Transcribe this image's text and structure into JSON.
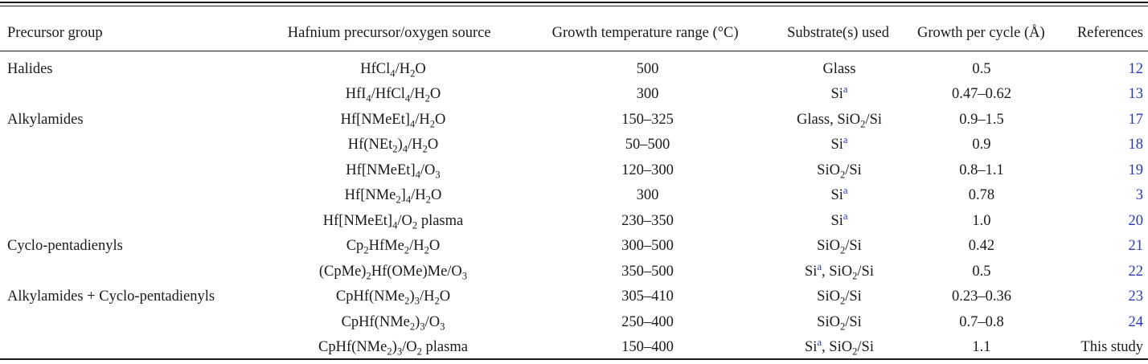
{
  "table": {
    "headers": [
      "Precursor group",
      "Hafnium precursor/oxygen source",
      "Growth temperature range (°C)",
      "Substrate(s) used",
      "Growth per cycle (Å)",
      "References"
    ],
    "rows": [
      {
        "group": "Halides",
        "precursor": [
          "HfCl",
          {
            "sub": "4"
          },
          "/H",
          {
            "sub": "2"
          },
          "O"
        ],
        "temp": "500",
        "substrate": [
          "Glass"
        ],
        "gpc": "0.5",
        "ref": "12"
      },
      {
        "group": "",
        "precursor": [
          "HfI",
          {
            "sub": "4"
          },
          "/HfCl",
          {
            "sub": "4"
          },
          "/H",
          {
            "sub": "2"
          },
          "O"
        ],
        "temp": "300",
        "substrate": [
          "Si",
          {
            "sup": "a"
          }
        ],
        "gpc": "0.47–0.62",
        "ref": "13"
      },
      {
        "group": "Alkylamides",
        "precursor": [
          "Hf[NMeEt]",
          {
            "sub": "4"
          },
          "/H",
          {
            "sub": "2"
          },
          "O"
        ],
        "temp": "150–325",
        "substrate": [
          "Glass, SiO",
          {
            "sub": "2"
          },
          "/Si"
        ],
        "gpc": "0.9–1.5",
        "ref": "17"
      },
      {
        "group": "",
        "precursor": [
          "Hf(NEt",
          {
            "sub": "2"
          },
          ")",
          {
            "sub": "4"
          },
          "/H",
          {
            "sub": "2"
          },
          "O"
        ],
        "temp": "50–500",
        "substrate": [
          "Si",
          {
            "sup": "a"
          }
        ],
        "gpc": "0.9",
        "ref": "18"
      },
      {
        "group": "",
        "precursor": [
          "Hf[NMeEt]",
          {
            "sub": "4"
          },
          "/O",
          {
            "sub": "3"
          }
        ],
        "temp": "120–300",
        "substrate": [
          "SiO",
          {
            "sub": "2"
          },
          "/Si"
        ],
        "gpc": "0.8–1.1",
        "ref": "19"
      },
      {
        "group": "",
        "precursor": [
          "Hf[NMe",
          {
            "sub": "2"
          },
          "]",
          {
            "sub": "4"
          },
          "/H",
          {
            "sub": "2"
          },
          "O"
        ],
        "temp": "300",
        "substrate": [
          "Si",
          {
            "sup": "a"
          }
        ],
        "gpc": "0.78",
        "ref": "3"
      },
      {
        "group": "",
        "precursor": [
          "Hf[NMeEt]",
          {
            "sub": "4"
          },
          "/O",
          {
            "sub": "2"
          },
          " plasma"
        ],
        "temp": "230–350",
        "substrate": [
          "Si",
          {
            "sup": "a"
          }
        ],
        "gpc": "1.0",
        "ref": "20"
      },
      {
        "group": "Cyclo-pentadienyls",
        "precursor": [
          "Cp",
          {
            "sub": "2"
          },
          "HfMe",
          {
            "sub": "2"
          },
          "/H",
          {
            "sub": "2"
          },
          "O"
        ],
        "temp": "300–500",
        "substrate": [
          "SiO",
          {
            "sub": "2"
          },
          "/Si"
        ],
        "gpc": "0.42",
        "ref": "21"
      },
      {
        "group": "",
        "precursor": [
          "(CpMe)",
          {
            "sub": "2"
          },
          "Hf(OMe)Me/O",
          {
            "sub": "3"
          }
        ],
        "temp": "350–500",
        "substrate": [
          "Si",
          {
            "sup": "a"
          },
          ", SiO",
          {
            "sub": "2"
          },
          "/Si"
        ],
        "gpc": "0.5",
        "ref": "22"
      },
      {
        "group": "Alkylamides + Cyclo-pentadienyls",
        "precursor": [
          "CpHf(NMe",
          {
            "sub": "2"
          },
          ")",
          {
            "sub": "3"
          },
          "/H",
          {
            "sub": "2"
          },
          "O"
        ],
        "temp": "305–410",
        "substrate": [
          "SiO",
          {
            "sub": "2"
          },
          "/Si"
        ],
        "gpc": "0.23–0.36",
        "ref": "23"
      },
      {
        "group": "",
        "precursor": [
          "CpHf(NMe",
          {
            "sub": "2"
          },
          ")",
          {
            "sub": "3"
          },
          "/O",
          {
            "sub": "3"
          }
        ],
        "temp": "250–400",
        "substrate": [
          "SiO",
          {
            "sub": "2"
          },
          "/Si"
        ],
        "gpc": "0.7–0.8",
        "ref": "24"
      },
      {
        "group": "",
        "precursor": [
          "CpHf(NMe",
          {
            "sub": "2"
          },
          ")",
          {
            "sub": "3"
          },
          "/O",
          {
            "sub": "2"
          },
          " plasma"
        ],
        "temp": "150–400",
        "substrate": [
          "Si",
          {
            "sup": "a"
          },
          ", SiO",
          {
            "sub": "2"
          },
          "/Si"
        ],
        "gpc": "1.1",
        "ref": "This study",
        "ref_is_link": false
      }
    ]
  },
  "colors": {
    "text": "#1a1a1a",
    "link": "#1f3ac9",
    "background": "#ffffff"
  }
}
